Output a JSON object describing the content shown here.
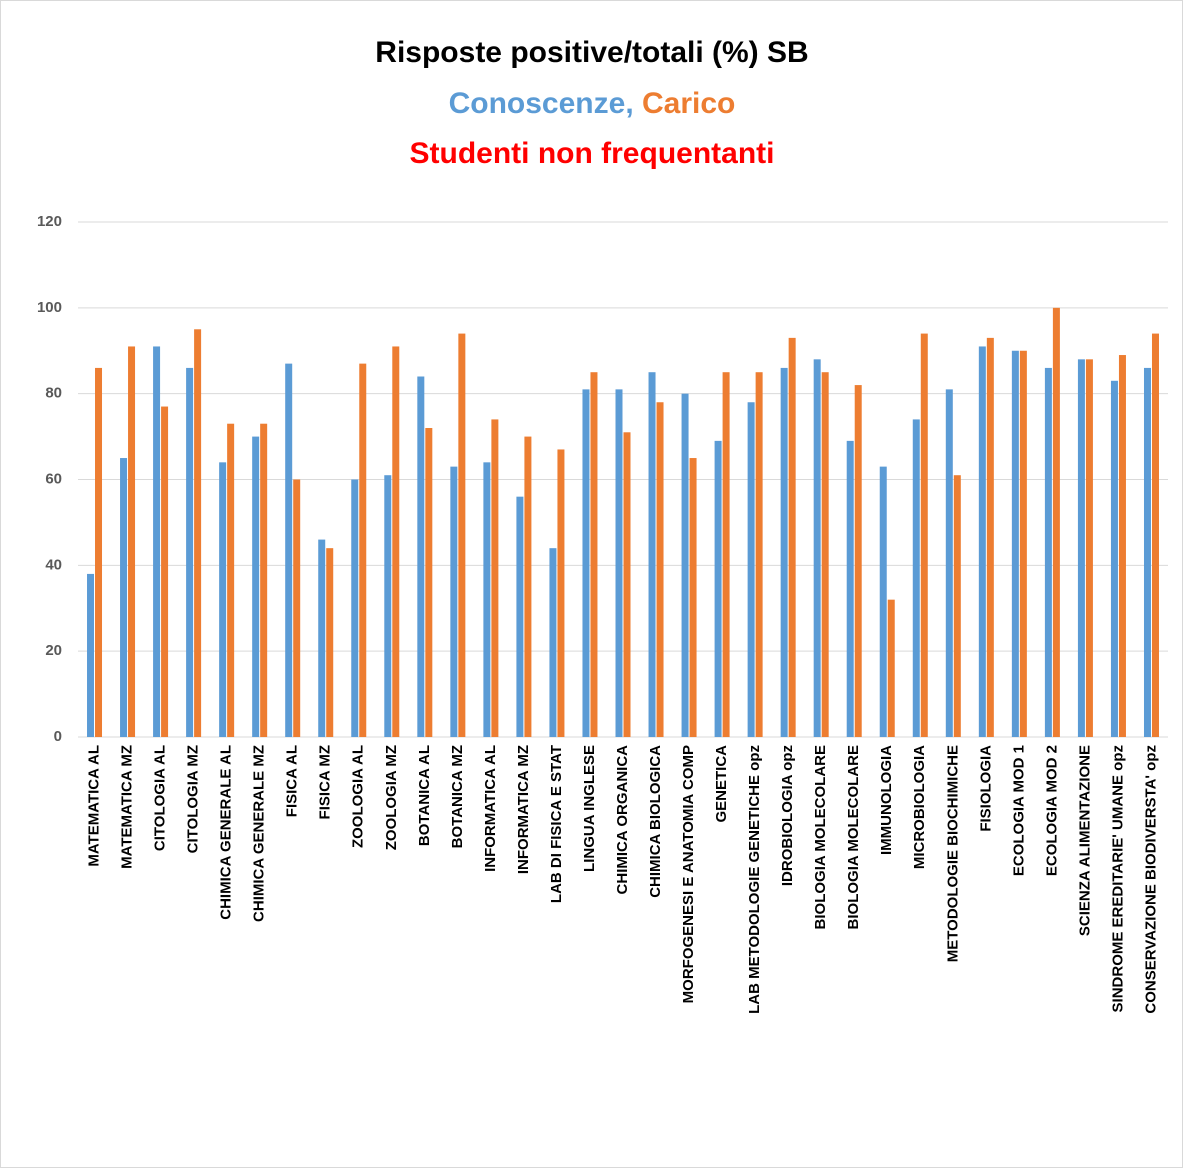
{
  "chart_data": {
    "type": "bar",
    "title": "Risposte positive/totali (%) SB",
    "note": "Studenti non frequentanti",
    "note_color": "#ff0000",
    "categories": [
      "MATEMATICA AL",
      "MATEMATICA MZ",
      "CITOLOGIA AL",
      "CITOLOGIA MZ",
      "CHIMICA GENERALE AL",
      "CHIMICA  GENERALE MZ",
      "FISICA AL",
      "FISICA MZ",
      "ZOOLOGIA AL",
      "ZOOLOGIA MZ",
      "BOTANICA AL",
      "BOTANICA MZ",
      "INFORMATICA AL",
      "INFORMATICA MZ",
      "LAB DI FISICA E STAT",
      "LINGUA INGLESE",
      "CHIMICA ORGANICA",
      "CHIMICA BIOLOGICA",
      "MORFOGENESI E ANATOMIA COMP",
      "GENETICA",
      "LAB METODOLOGIE GENETICHE opz",
      "IDROBIOLOGIA  opz",
      "BIOLOGIA MOLECOLARE",
      "BIOLOGIA MOLECOLARE",
      "IMMUNOLOGIA",
      "MICROBIOLOGIA",
      "METODOLOGIE BIOCHIMICHE",
      "FISIOLOGIA",
      "ECOLOGIA MOD 1",
      "ECOLOGIA MOD 2",
      "SCIENZA ALIMENTAZIONE",
      "SINDROME EREDITARIE' UMANE opz",
      "CONSERVAZIONE BIODIVERSTA' opz"
    ],
    "series": [
      {
        "name": "Conoscenze,",
        "color": "#5b9bd5",
        "values": [
          38,
          65,
          91,
          86,
          64,
          70,
          87,
          46,
          60,
          61,
          84,
          63,
          64,
          56,
          44,
          81,
          81,
          85,
          80,
          69,
          78,
          86,
          88,
          69,
          63,
          74,
          81,
          91,
          90,
          86,
          88,
          83,
          86
        ]
      },
      {
        "name": "Carico",
        "color": "#ed7d31",
        "values": [
          86,
          91,
          77,
          95,
          73,
          73,
          60,
          44,
          87,
          91,
          72,
          94,
          74,
          70,
          67,
          85,
          71,
          78,
          65,
          85,
          85,
          93,
          85,
          82,
          32,
          94,
          61,
          93,
          90,
          100,
          88,
          89,
          94
        ]
      }
    ],
    "ylim": [
      0,
      120
    ],
    "yticks": [
      0,
      20,
      40,
      60,
      80,
      100,
      120
    ],
    "grid": true
  }
}
